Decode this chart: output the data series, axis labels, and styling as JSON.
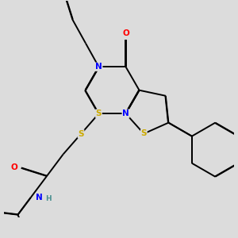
{
  "background_color": "#dcdcdc",
  "bond_color": "#000000",
  "atom_colors": {
    "N": "#0000ff",
    "O": "#ff0000",
    "S": "#ccaa00",
    "H": "#4a9090",
    "C": "#000000"
  },
  "figsize": [
    3.0,
    3.0
  ],
  "dpi": 100
}
